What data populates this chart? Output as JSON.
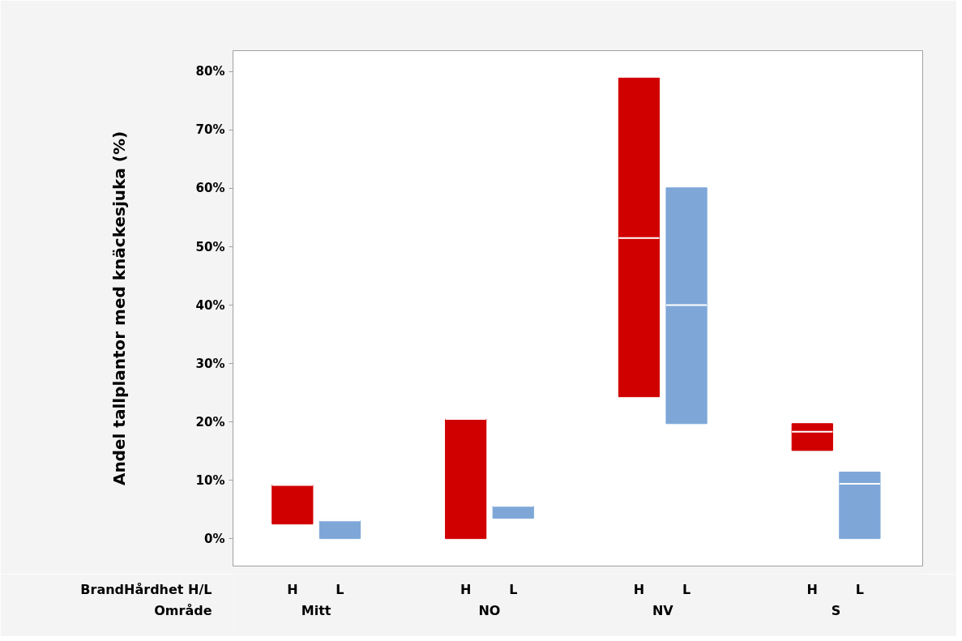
{
  "chart_data": {
    "type": "box",
    "ylabel": "Andel tallplantor med knäckesjuka (%)",
    "categories": [
      "Mitt",
      "NO",
      "NV",
      "S"
    ],
    "series": [
      {
        "name": "H",
        "color": "#d10000",
        "boxes": [
          {
            "low": 2.5,
            "q1": 2.5,
            "median": 9.2,
            "q3": 9.2,
            "high": 9.2
          },
          {
            "low": 0,
            "q1": 0,
            "median": 20.5,
            "q3": 20.5,
            "high": 20.5
          },
          {
            "low": 24.3,
            "q1": 24.3,
            "median": 51.5,
            "q3": 78.9,
            "high": 78.9
          },
          {
            "low": 15.1,
            "q1": 15.1,
            "median": 18.3,
            "q3": 19.7,
            "high": 19.7
          }
        ]
      },
      {
        "name": "L",
        "color": "#7ea7d8",
        "boxes": [
          {
            "low": 0,
            "q1": 0,
            "median": 3.1,
            "q3": 3.1,
            "high": 3.1
          },
          {
            "low": 3.5,
            "q1": 3.5,
            "median": 5.6,
            "q3": 5.6,
            "high": 5.6
          },
          {
            "low": 19.7,
            "q1": 19.7,
            "median": 40.0,
            "q3": 60.1,
            "high": 60.1
          },
          {
            "low": 0,
            "q1": 0,
            "median": 9.4,
            "q3": 11.4,
            "high": 11.4
          }
        ]
      }
    ],
    "ylim": [
      -4.7,
      83.6
    ],
    "yticks": [
      {
        "value": 0,
        "label": "0%"
      },
      {
        "value": 10,
        "label": "10%"
      },
      {
        "value": 20,
        "label": "20%"
      },
      {
        "value": 30,
        "label": "30%"
      },
      {
        "value": 40,
        "label": "40%"
      },
      {
        "value": 50,
        "label": "50%"
      },
      {
        "value": 60,
        "label": "60%"
      },
      {
        "value": 70,
        "label": "70%"
      },
      {
        "value": 80,
        "label": "80%"
      }
    ],
    "annotations": [
      "BrandHårdhet H/L",
      "Område"
    ],
    "grid": false,
    "legend": false
  }
}
